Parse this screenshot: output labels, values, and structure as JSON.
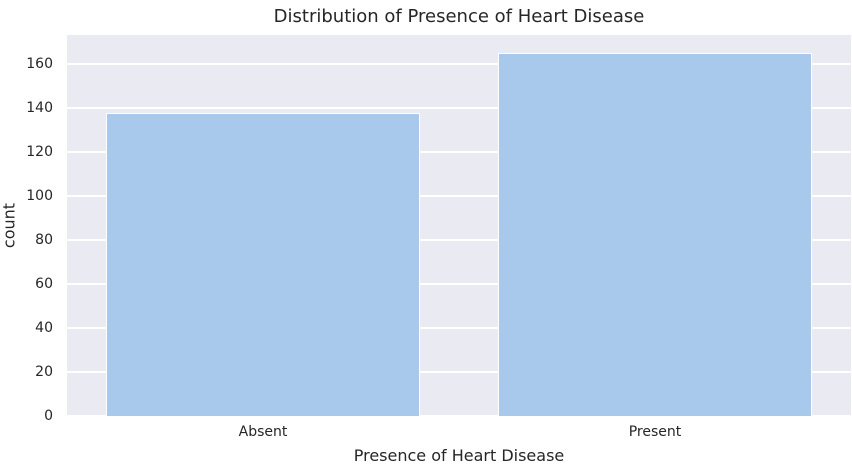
{
  "chart_data": {
    "type": "bar",
    "title": "Distribution of Presence of Heart Disease",
    "xlabel": "Presence of Heart Disease",
    "ylabel": "count",
    "categories": [
      "Absent",
      "Present"
    ],
    "values": [
      138,
      165
    ],
    "yticks": [
      0,
      20,
      40,
      60,
      80,
      100,
      120,
      140,
      160
    ],
    "ylim": [
      0,
      173.25
    ],
    "bar_width_fraction": 0.8,
    "grid": true,
    "legend": false
  },
  "colors": {
    "bar_fill": "#a9c9ec",
    "bar_edge": "#ffffff",
    "plot_background": "#eaeaf2",
    "gridline": "#ffffff",
    "figure_background": "#ffffff",
    "text": "#262626"
  }
}
